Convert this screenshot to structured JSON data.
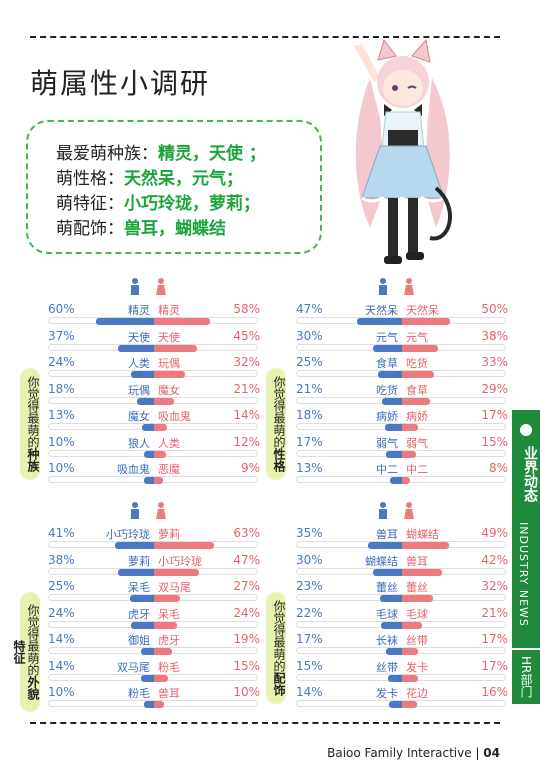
{
  "title": "萌属性小调研",
  "summary": [
    {
      "label": "最爱萌种族：",
      "value": "精灵，天使 ；"
    },
    {
      "label": "萌性格：",
      "value": "天然呆，元气；"
    },
    {
      "label": "萌特征：",
      "value": "小巧玲珑，萝莉；"
    },
    {
      "label": "萌配饰：",
      "value": "兽耳，蝴蝶结"
    }
  ],
  "sections": [
    {
      "label_prefix": "你觉得最萌的",
      "label_key": "种族",
      "rows": [
        {
          "l_pct": "60%",
          "l_name": "精灵",
          "l_val": 60,
          "r_name": "精灵",
          "r_pct": "58%",
          "r_val": 58
        },
        {
          "l_pct": "37%",
          "l_name": "天使",
          "l_val": 37,
          "r_name": "天使",
          "r_pct": "45%",
          "r_val": 45
        },
        {
          "l_pct": "24%",
          "l_name": "人类",
          "l_val": 24,
          "r_name": "玩偶",
          "r_pct": "32%",
          "r_val": 32
        },
        {
          "l_pct": "18%",
          "l_name": "玩偶",
          "l_val": 18,
          "r_name": "魔女",
          "r_pct": "21%",
          "r_val": 21
        },
        {
          "l_pct": "13%",
          "l_name": "魔女",
          "l_val": 13,
          "r_name": "吸血鬼",
          "r_pct": "14%",
          "r_val": 14
        },
        {
          "l_pct": "10%",
          "l_name": "狼人",
          "l_val": 10,
          "r_name": "人类",
          "r_pct": "12%",
          "r_val": 12
        },
        {
          "l_pct": "10%",
          "l_name": "吸血鬼",
          "l_val": 10,
          "r_name": "恶魔",
          "r_pct": "9%",
          "r_val": 9
        }
      ]
    },
    {
      "label_prefix": "你觉得最萌的",
      "label_key": "性格",
      "rows": [
        {
          "l_pct": "47%",
          "l_name": "天然呆",
          "l_val": 47,
          "r_name": "天然呆",
          "r_pct": "50%",
          "r_val": 50
        },
        {
          "l_pct": "30%",
          "l_name": "元气",
          "l_val": 30,
          "r_name": "元气",
          "r_pct": "38%",
          "r_val": 38
        },
        {
          "l_pct": "25%",
          "l_name": "食草",
          "l_val": 25,
          "r_name": "吃货",
          "r_pct": "33%",
          "r_val": 33
        },
        {
          "l_pct": "21%",
          "l_name": "吃货",
          "l_val": 21,
          "r_name": "食草",
          "r_pct": "29%",
          "r_val": 29
        },
        {
          "l_pct": "18%",
          "l_name": "病娇",
          "l_val": 18,
          "r_name": "病娇",
          "r_pct": "17%",
          "r_val": 17
        },
        {
          "l_pct": "17%",
          "l_name": "弱气",
          "l_val": 17,
          "r_name": "弱气",
          "r_pct": "15%",
          "r_val": 15
        },
        {
          "l_pct": "13%",
          "l_name": "中二",
          "l_val": 13,
          "r_name": "中二",
          "r_pct": "8%",
          "r_val": 8
        }
      ]
    },
    {
      "label_prefix": "你觉得最萌的",
      "label_key": "外貌特征",
      "rows": [
        {
          "l_pct": "41%",
          "l_name": "小巧玲珑",
          "l_val": 41,
          "r_name": "萝莉",
          "r_pct": "63%",
          "r_val": 63
        },
        {
          "l_pct": "38%",
          "l_name": "萝莉",
          "l_val": 38,
          "r_name": "小巧玲珑",
          "r_pct": "47%",
          "r_val": 47
        },
        {
          "l_pct": "25%",
          "l_name": "呆毛",
          "l_val": 25,
          "r_name": "双马尾",
          "r_pct": "27%",
          "r_val": 27
        },
        {
          "l_pct": "24%",
          "l_name": "虎牙",
          "l_val": 24,
          "r_name": "呆毛",
          "r_pct": "24%",
          "r_val": 24
        },
        {
          "l_pct": "14%",
          "l_name": "御姐",
          "l_val": 14,
          "r_name": "虎牙",
          "r_pct": "19%",
          "r_val": 19
        },
        {
          "l_pct": "14%",
          "l_name": "双马尾",
          "l_val": 14,
          "r_name": "粉毛",
          "r_pct": "15%",
          "r_val": 15
        },
        {
          "l_pct": "10%",
          "l_name": "粉毛",
          "l_val": 10,
          "r_name": "兽耳",
          "r_pct": "10%",
          "r_val": 10
        }
      ]
    },
    {
      "label_prefix": "你觉得最萌的",
      "label_key": "配饰",
      "rows": [
        {
          "l_pct": "35%",
          "l_name": "兽耳",
          "l_val": 35,
          "r_name": "蝴蝶结",
          "r_pct": "49%",
          "r_val": 49
        },
        {
          "l_pct": "30%",
          "l_name": "蝴蝶结",
          "l_val": 30,
          "r_name": "兽耳",
          "r_pct": "42%",
          "r_val": 42
        },
        {
          "l_pct": "23%",
          "l_name": "蕾丝",
          "l_val": 23,
          "r_name": "蕾丝",
          "r_pct": "32%",
          "r_val": 32
        },
        {
          "l_pct": "22%",
          "l_name": "毛球",
          "l_val": 22,
          "r_name": "毛球",
          "r_pct": "21%",
          "r_val": 21
        },
        {
          "l_pct": "17%",
          "l_name": "长袜",
          "l_val": 17,
          "r_name": "丝带",
          "r_pct": "17%",
          "r_val": 17
        },
        {
          "l_pct": "15%",
          "l_name": "丝带",
          "l_val": 15,
          "r_name": "发卡",
          "r_pct": "17%",
          "r_val": 17
        },
        {
          "l_pct": "14%",
          "l_name": "发卡",
          "l_val": 14,
          "r_name": "花边",
          "r_pct": "16%",
          "r_val": 16
        }
      ]
    }
  ],
  "side_tab": {
    "cn": "业界动态",
    "en": "INDUSTRY NEWS"
  },
  "side_tab2": "HR部门",
  "footer": {
    "company": "Baioo Family Interactive",
    "page": "04"
  },
  "colors": {
    "male": "#4a78c2",
    "female": "#ec7a7e",
    "accent": "#1aa53a",
    "tab": "#1f8a3a"
  }
}
